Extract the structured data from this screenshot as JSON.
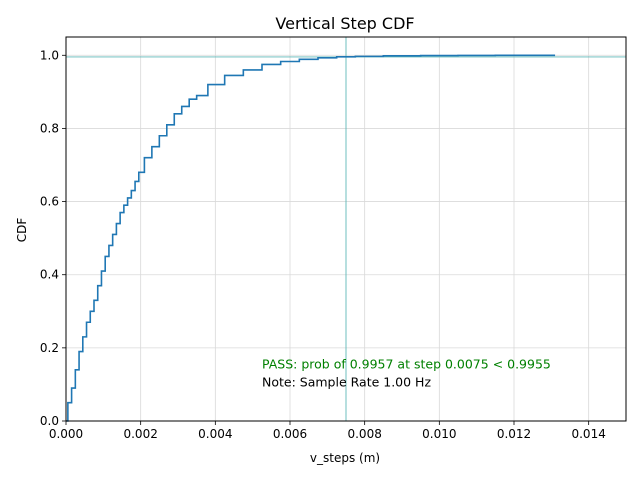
{
  "chart_data": {
    "type": "line",
    "title": "Vertical Step CDF",
    "xlabel": "v_steps (m)",
    "ylabel": "CDF",
    "xlim": [
      0,
      0.015
    ],
    "ylim": [
      0,
      1.05
    ],
    "grid": true,
    "x_ticks": [
      0,
      0.002,
      0.004,
      0.006,
      0.008,
      0.01,
      0.012,
      0.014
    ],
    "x_tick_labels": [
      "0.000",
      "0.002",
      "0.004",
      "0.006",
      "0.008",
      "0.010",
      "0.012",
      "0.014"
    ],
    "y_ticks": [
      0,
      0.2,
      0.4,
      0.6,
      0.8,
      1.0
    ],
    "y_tick_labels": [
      "0.0",
      "0.2",
      "0.4",
      "0.6",
      "0.8",
      "1.0"
    ],
    "series": [
      {
        "color": "#1f77b4",
        "x": [
          0,
          0.0001,
          0.0002,
          0.0003,
          0.0004,
          0.0005,
          0.0006,
          0.0007,
          0.0008,
          0.0009,
          0.001,
          0.0011,
          0.0012,
          0.0013,
          0.0014,
          0.0015,
          0.0016,
          0.0017,
          0.0018,
          0.0019,
          0.002,
          0.0022,
          0.0024,
          0.0026,
          0.0028,
          0.003,
          0.0032,
          0.0034,
          0.0036,
          0.004,
          0.0045,
          0.005,
          0.0055,
          0.006,
          0.0065,
          0.007,
          0.0075,
          0.008,
          0.009,
          0.01,
          0.011,
          0.012,
          0.0131
        ],
        "y": [
          0.0,
          0.05,
          0.09,
          0.14,
          0.19,
          0.23,
          0.27,
          0.3,
          0.33,
          0.37,
          0.41,
          0.45,
          0.48,
          0.51,
          0.54,
          0.57,
          0.59,
          0.61,
          0.63,
          0.655,
          0.68,
          0.72,
          0.75,
          0.78,
          0.81,
          0.84,
          0.86,
          0.88,
          0.89,
          0.92,
          0.945,
          0.96,
          0.975,
          0.983,
          0.989,
          0.993,
          0.9957,
          0.997,
          0.9985,
          0.9993,
          0.9997,
          0.9999,
          1.0
        ]
      }
    ],
    "reference_lines": {
      "horizontal_y": 0.9955,
      "vertical_x": 0.0075,
      "color": "#5fb8b8"
    },
    "annotations": [
      {
        "text": "PASS: prob of 0.9957 at step 0.0075 < 0.9955",
        "x": 0.00525,
        "y": 0.155,
        "color": "#008000"
      },
      {
        "text": "Note: Sample Rate 1.00 Hz",
        "x": 0.00525,
        "y": 0.105,
        "color": "#000000"
      }
    ]
  }
}
